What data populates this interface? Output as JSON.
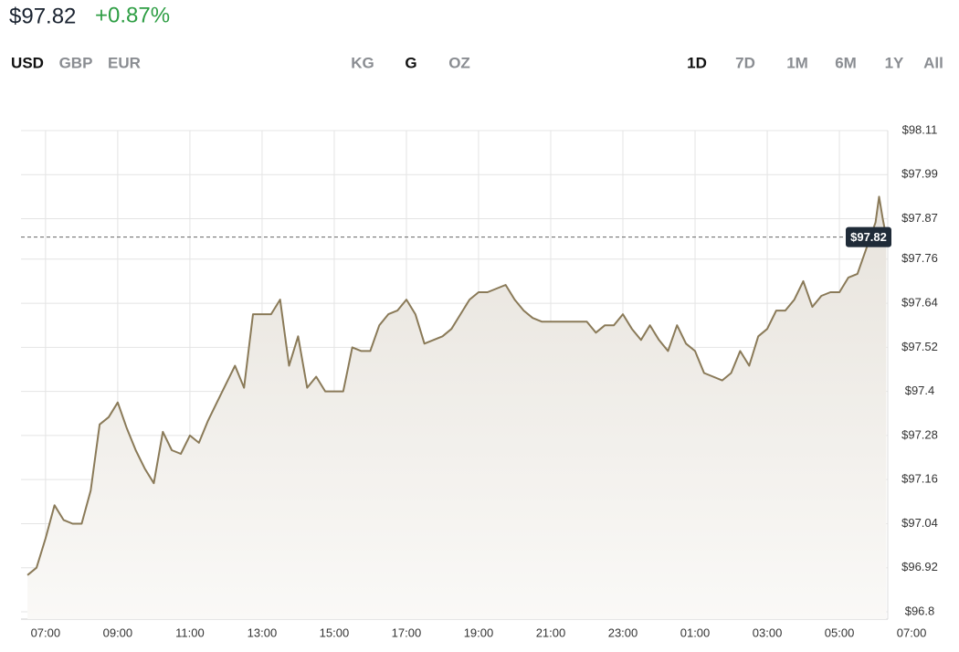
{
  "header": {
    "price": {
      "value": 97.82,
      "label": "$97.82"
    },
    "change": "+0.87%",
    "change_color": "#2e9e44"
  },
  "currency_tabs": [
    {
      "label": "USD",
      "selected": true
    },
    {
      "label": "GBP",
      "selected": false
    },
    {
      "label": "EUR",
      "selected": false
    }
  ],
  "unit_tabs": [
    {
      "label": "KG",
      "selected": false
    },
    {
      "label": "G",
      "selected": true
    },
    {
      "label": "OZ",
      "selected": false
    }
  ],
  "range_tabs": [
    {
      "label": "1D",
      "selected": true
    },
    {
      "label": "7D",
      "selected": false
    },
    {
      "label": "1M",
      "selected": false
    },
    {
      "label": "6M",
      "selected": false
    },
    {
      "label": "1Y",
      "selected": false
    },
    {
      "label": "All",
      "selected": false
    }
  ],
  "chart_data": {
    "type": "area",
    "color": "#8a7a58",
    "grid": true,
    "xlim": [
      6.32,
      30.34
    ],
    "xticks": [
      {
        "value": 7,
        "label": "07:00"
      },
      {
        "value": 9,
        "label": "09:00"
      },
      {
        "value": 11,
        "label": "11:00"
      },
      {
        "value": 13,
        "label": "13:00"
      },
      {
        "value": 15,
        "label": "15:00"
      },
      {
        "value": 17,
        "label": "17:00"
      },
      {
        "value": 19,
        "label": "19:00"
      },
      {
        "value": 21,
        "label": "21:00"
      },
      {
        "value": 23,
        "label": "23:00"
      },
      {
        "value": 25,
        "label": "01:00"
      },
      {
        "value": 27,
        "label": "03:00"
      },
      {
        "value": 29,
        "label": "05:00"
      },
      {
        "value": 31,
        "label": "07:00"
      }
    ],
    "ylim": [
      96.8,
      98.11
    ],
    "yticks": [
      {
        "value": 96.8,
        "label": "$96.8"
      },
      {
        "value": 96.92,
        "label": "$96.92"
      },
      {
        "value": 97.04,
        "label": "$97.04"
      },
      {
        "value": 97.16,
        "label": "$97.16"
      },
      {
        "value": 97.28,
        "label": "$97.28"
      },
      {
        "value": 97.4,
        "label": "$97.4"
      },
      {
        "value": 97.52,
        "label": "$97.52"
      },
      {
        "value": 97.64,
        "label": "$97.64"
      },
      {
        "value": 97.76,
        "label": "$97.76"
      },
      {
        "value": 97.87,
        "label": "$97.87"
      },
      {
        "value": 97.99,
        "label": "$97.99"
      },
      {
        "value": 98.11,
        "label": "$98.11"
      }
    ],
    "x": [
      6.5,
      6.75,
      7.0,
      7.25,
      7.5,
      7.75,
      8.0,
      8.25,
      8.5,
      8.75,
      9.0,
      9.25,
      9.5,
      9.75,
      10.0,
      10.25,
      10.5,
      10.75,
      11.0,
      11.25,
      11.5,
      11.75,
      12.0,
      12.25,
      12.5,
      12.75,
      13.0,
      13.25,
      13.5,
      13.75,
      14.0,
      14.25,
      14.5,
      14.75,
      15.0,
      15.25,
      15.5,
      15.75,
      16.0,
      16.25,
      16.5,
      16.75,
      17.0,
      17.25,
      17.5,
      17.75,
      18.0,
      18.25,
      18.5,
      18.75,
      19.0,
      19.25,
      19.5,
      19.75,
      20.0,
      20.25,
      20.5,
      20.75,
      21.0,
      21.25,
      21.5,
      21.75,
      22.0,
      22.25,
      22.5,
      22.75,
      23.0,
      23.25,
      23.5,
      23.75,
      24.0,
      24.25,
      24.5,
      24.75,
      25.0,
      25.25,
      25.5,
      25.75,
      26.0,
      26.25,
      26.5,
      26.75,
      27.0,
      27.25,
      27.5,
      27.75,
      28.0,
      28.25,
      28.5,
      28.75,
      29.0,
      29.25,
      29.5,
      29.75,
      30.0,
      30.1,
      30.2,
      30.3
    ],
    "values": [
      96.9,
      96.92,
      97.0,
      97.09,
      97.05,
      97.04,
      97.04,
      97.13,
      97.31,
      97.33,
      97.37,
      97.3,
      97.24,
      97.19,
      97.15,
      97.29,
      97.24,
      97.23,
      97.28,
      97.26,
      97.32,
      97.37,
      97.42,
      97.47,
      97.41,
      97.61,
      97.61,
      97.61,
      97.65,
      97.47,
      97.55,
      97.41,
      97.44,
      97.4,
      97.4,
      97.4,
      97.52,
      97.51,
      97.51,
      97.58,
      97.61,
      97.62,
      97.65,
      97.61,
      97.53,
      97.54,
      97.55,
      97.57,
      97.61,
      97.65,
      97.67,
      97.67,
      97.68,
      97.69,
      97.65,
      97.62,
      97.6,
      97.59,
      97.59,
      97.59,
      97.59,
      97.59,
      97.59,
      97.56,
      97.58,
      97.58,
      97.61,
      97.57,
      97.54,
      97.58,
      97.54,
      97.51,
      97.58,
      97.53,
      97.51,
      97.45,
      97.44,
      97.43,
      97.45,
      97.51,
      97.47,
      97.55,
      97.57,
      97.62,
      97.62,
      97.65,
      97.7,
      97.63,
      97.66,
      97.67,
      97.67,
      97.71,
      97.72,
      97.79,
      97.86,
      97.93,
      97.87,
      97.82
    ]
  }
}
